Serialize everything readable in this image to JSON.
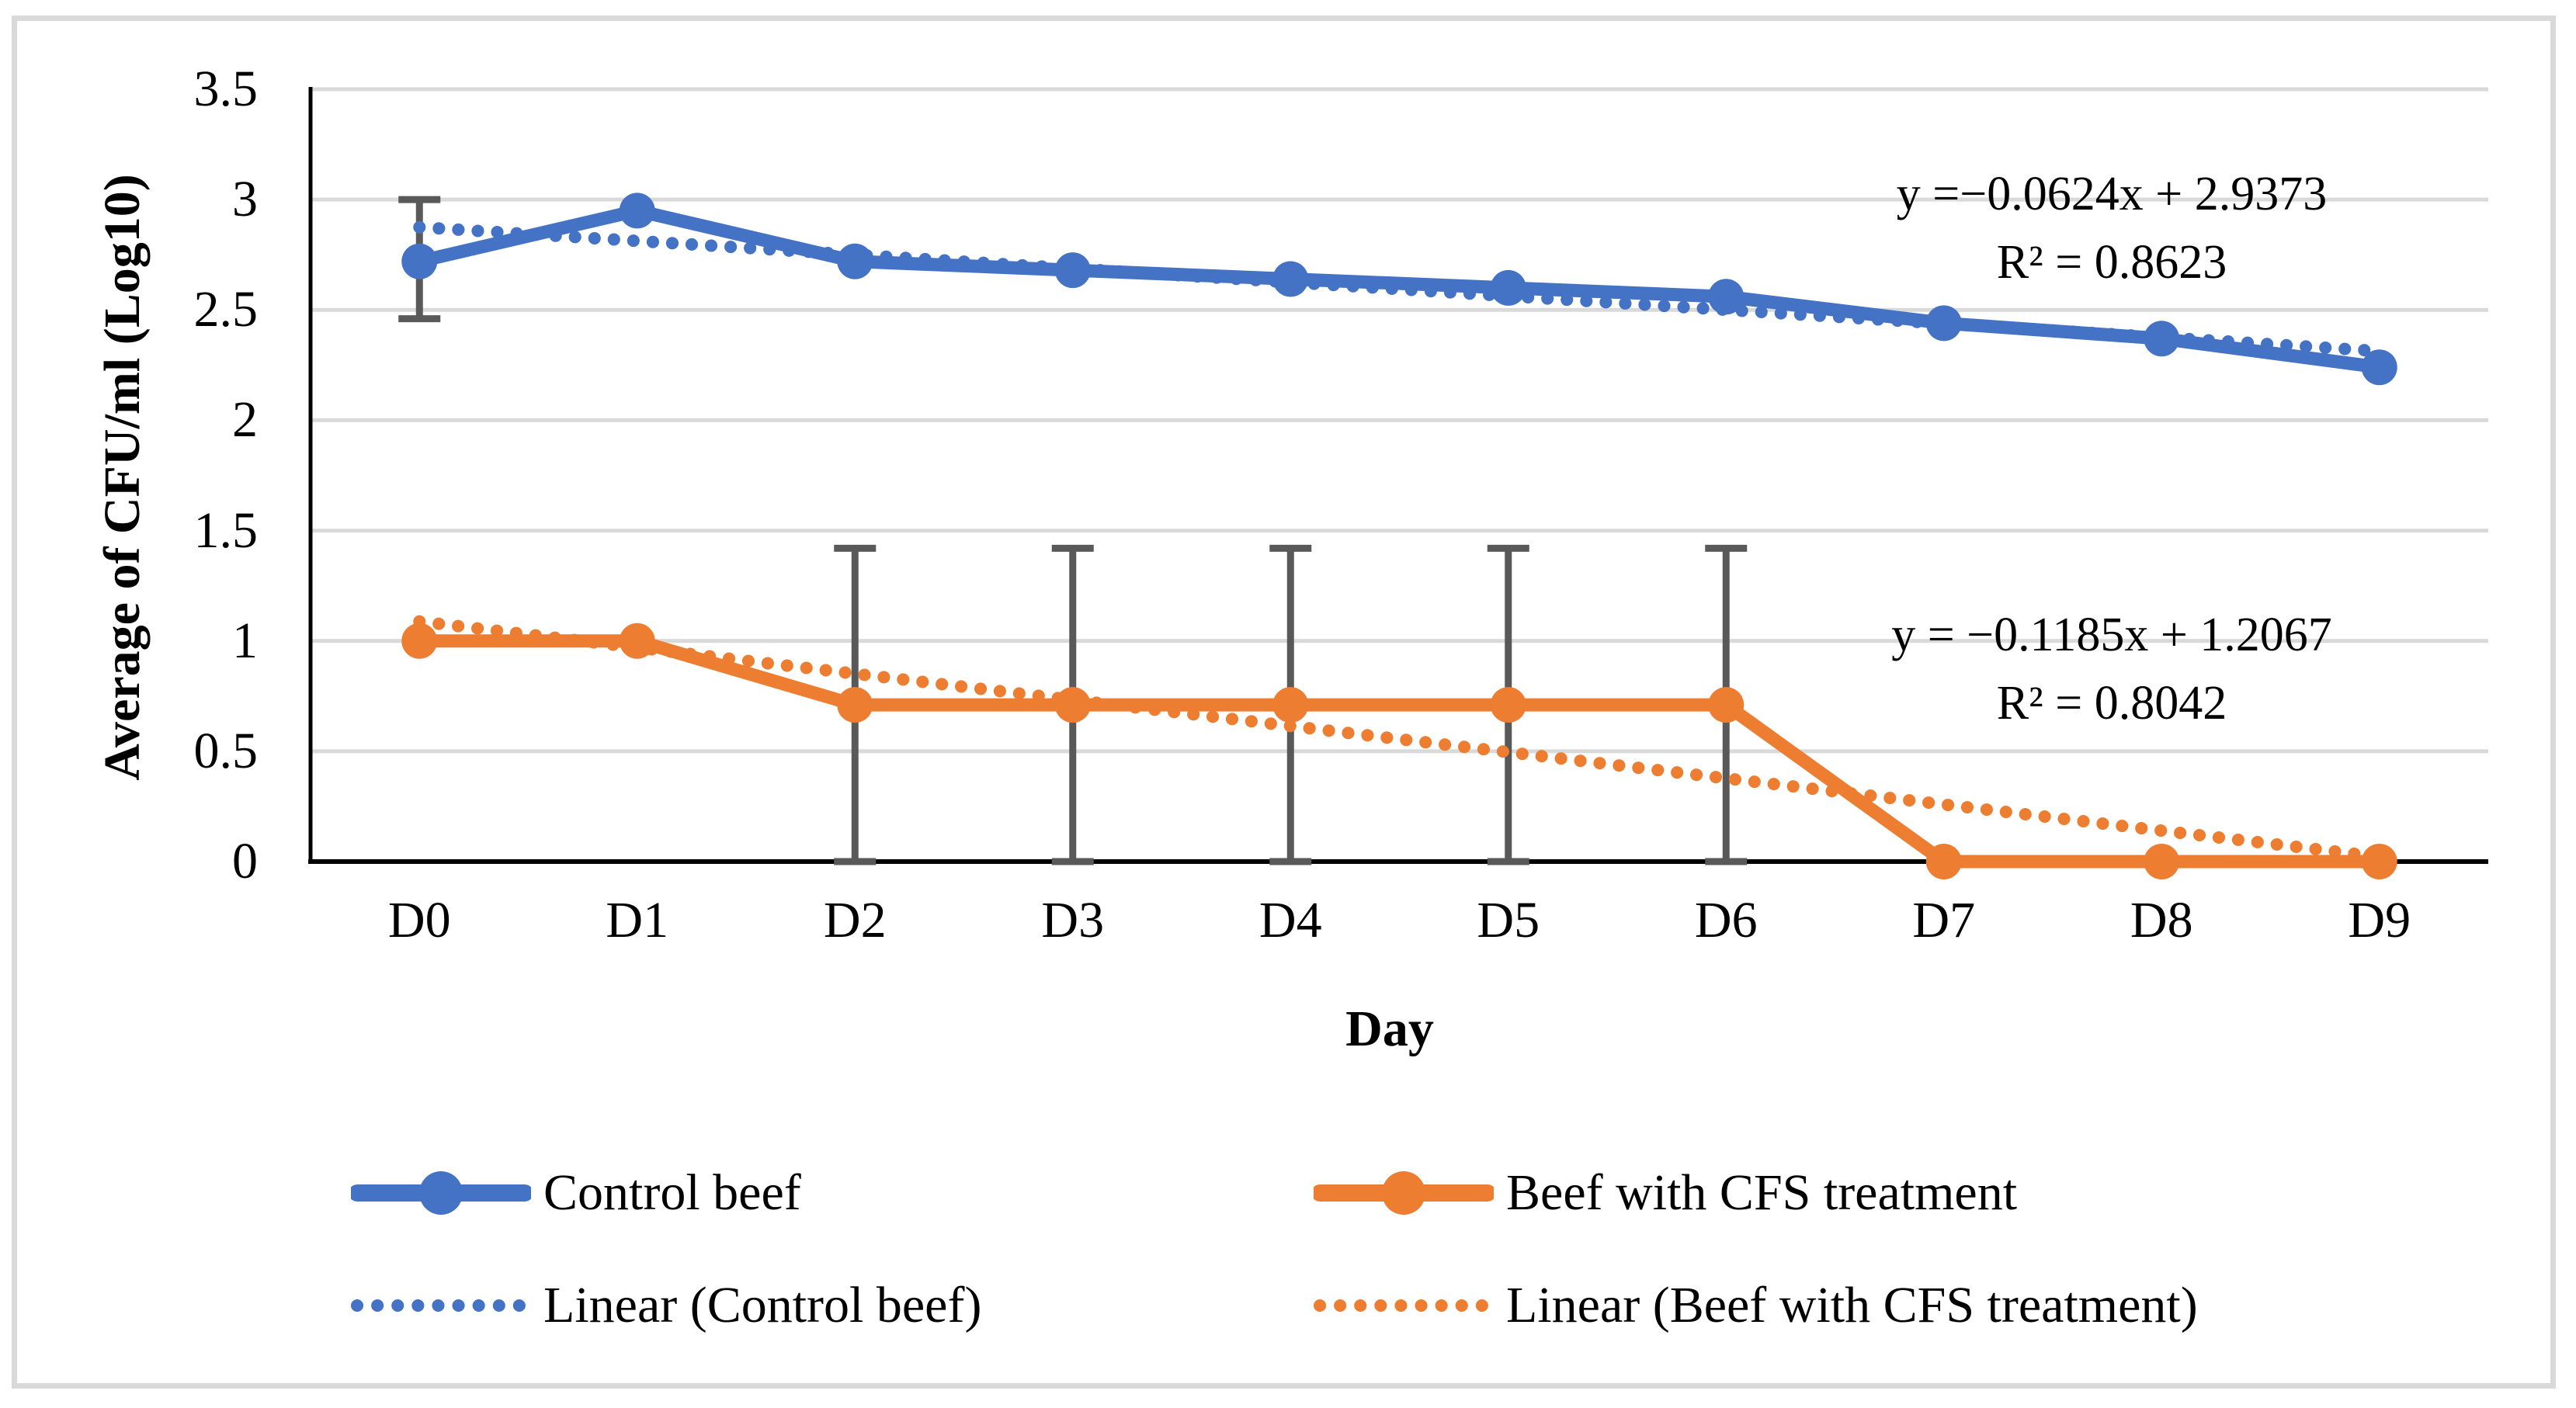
{
  "figure": {
    "background_color": "#FFFFFF",
    "border_color": "#D9D9D9"
  },
  "chart_data": {
    "type": "line",
    "title": "",
    "xlabel": "Day",
    "ylabel": "Average of CFU/ml (Log10)",
    "categories": [
      "D0",
      "D1",
      "D2",
      "D3",
      "D4",
      "D5",
      "D6",
      "D7",
      "D8",
      "D9"
    ],
    "ylim": [
      0,
      3.5
    ],
    "grid": true,
    "legend_position": "bottom",
    "gridline_color": "#D9D9D9",
    "axis_color": "#000000",
    "error_bar_color": "#595959",
    "yticks": [
      {
        "label": "0",
        "value": 0
      },
      {
        "label": "0.5",
        "value": 0.5
      },
      {
        "label": "1",
        "value": 1
      },
      {
        "label": "1.5",
        "value": 1.5
      },
      {
        "label": "2",
        "value": 2
      },
      {
        "label": "2.5",
        "value": 2.5
      },
      {
        "label": "3",
        "value": 3
      },
      {
        "label": "3.5",
        "value": 3.5
      }
    ],
    "series": [
      {
        "name": "Control beef",
        "color": "#4472C4",
        "values": [
          2.72,
          2.95,
          2.72,
          2.68,
          2.64,
          2.6,
          2.56,
          2.44,
          2.37,
          2.24
        ],
        "error_bars": [
          {
            "category": "D0",
            "low": 2.46,
            "high": 3.0
          }
        ]
      },
      {
        "name": "Beef with CFS treatment",
        "color": "#ED7D31",
        "values": [
          1.0,
          1.0,
          0.71,
          0.71,
          0.71,
          0.71,
          0.71,
          0.0,
          0.0,
          0.0
        ],
        "error_bars": [
          {
            "category": "D2",
            "low": 0,
            "high": 1.42
          },
          {
            "category": "D3",
            "low": 0,
            "high": 1.42
          },
          {
            "category": "D4",
            "low": 0,
            "high": 1.42
          },
          {
            "category": "D5",
            "low": 0,
            "high": 1.42
          },
          {
            "category": "D6",
            "low": 0,
            "high": 1.42
          }
        ]
      }
    ],
    "trendlines": [
      {
        "name": "Linear (Control beef)",
        "color": "#4472C4",
        "slope": -0.0624,
        "intercept": 2.9373,
        "equation_label": "y =−0.0624x + 2.9373",
        "r2_label": "R² = 0.8623"
      },
      {
        "name": "Linear (Beef with CFS treatment)",
        "color": "#ED7D31",
        "slope": -0.1185,
        "intercept": 1.2067,
        "equation_label": "y = −0.1185x + 1.2067",
        "r2_label": "R² = 0.8042"
      }
    ]
  },
  "legend": {
    "items": [
      {
        "label": "Control beef",
        "color": "#4472C4",
        "style": "solid-marker"
      },
      {
        "label": "Beef with CFS treatment",
        "color": "#ED7D31",
        "style": "solid-marker"
      },
      {
        "label": "Linear (Control beef)",
        "color": "#4472C4",
        "style": "dotted"
      },
      {
        "label": "Linear (Beef with CFS treatment)",
        "color": "#ED7D31",
        "style": "dotted"
      }
    ]
  }
}
